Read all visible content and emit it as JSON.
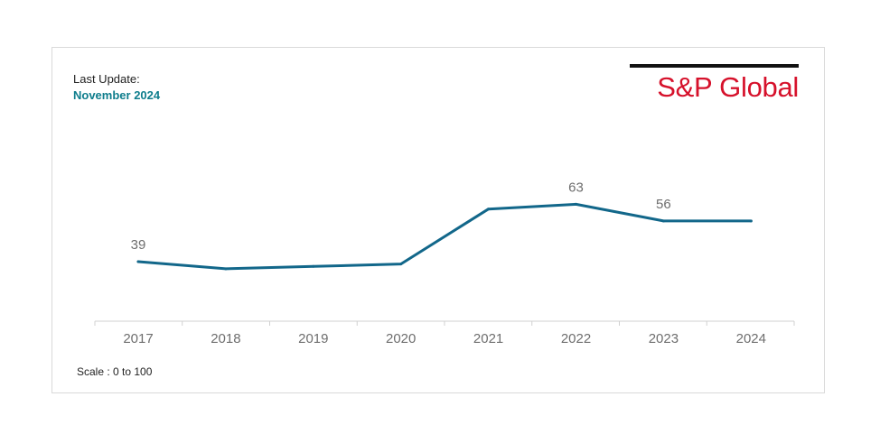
{
  "header": {
    "update_label": "Last Update:",
    "update_date": "November 2024",
    "logo_text": "S&P Global"
  },
  "footer": {
    "scale_note": "Scale : 0 to 100"
  },
  "colors": {
    "line": "#12678a",
    "update_date": "#0e7d8c",
    "logo_red": "#d6112b",
    "logo_bar": "#111111",
    "axis_text": "#6e6e6e",
    "axis_line": "#d0d0d0"
  },
  "chart_data": {
    "type": "line",
    "title": "",
    "xlabel": "",
    "ylabel": "",
    "categories": [
      "2017",
      "2018",
      "2019",
      "2020",
      "2021",
      "2022",
      "2023",
      "2024"
    ],
    "series": [
      {
        "values": [
          39,
          36,
          37,
          38,
          61,
          63,
          56,
          56
        ]
      }
    ],
    "labeled_points": [
      {
        "category": "2017",
        "label": "39"
      },
      {
        "category": "2022",
        "label": "63"
      },
      {
        "category": "2023",
        "label": "56"
      }
    ],
    "ylim": [
      0,
      100
    ],
    "grid": false,
    "legend": "none"
  }
}
